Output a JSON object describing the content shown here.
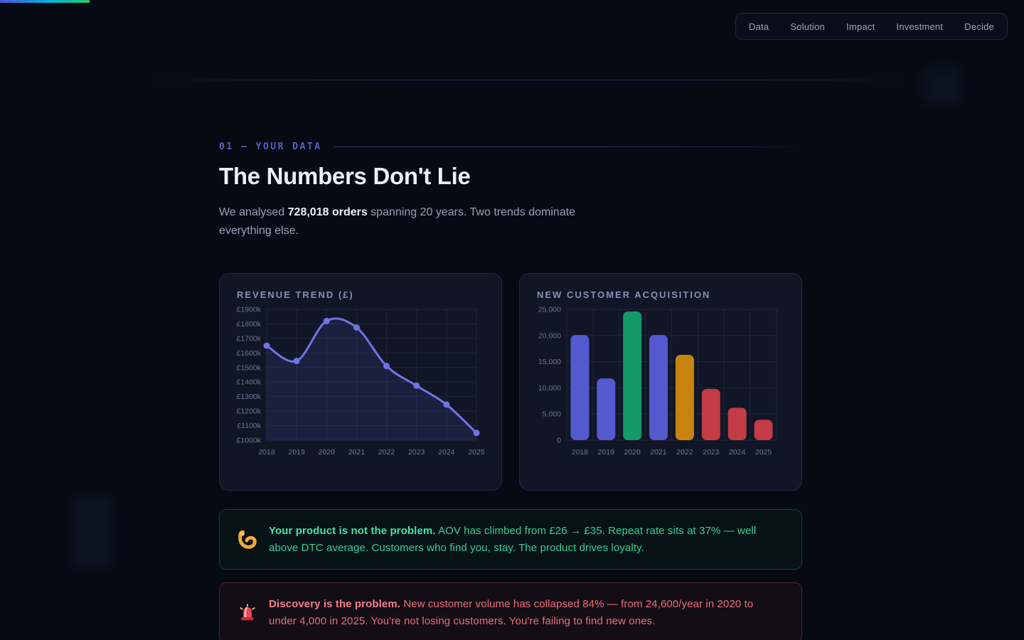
{
  "page": {
    "background": "#060a12",
    "accent_indigo": "#5459ce",
    "accent_green": "#12996a",
    "accent_amber": "#c8830f",
    "accent_red": "#c33b44"
  },
  "progress_bar": {
    "gradient": [
      "#4d53d8",
      "#00b5d8",
      "#2cc46f"
    ]
  },
  "nav": {
    "items": [
      {
        "label": "Data"
      },
      {
        "label": "Solution"
      },
      {
        "label": "Impact"
      },
      {
        "label": "Investment"
      },
      {
        "label": "Decide"
      }
    ]
  },
  "section": {
    "kicker": "01 — YOUR DATA",
    "title": "The Numbers Don't Lie",
    "intro_prefix": "We analysed ",
    "intro_bold": "728,018 orders",
    "intro_suffix": " spanning 20 years. Two trends dominate everything else."
  },
  "chart_data": [
    {
      "type": "line",
      "title": "REVENUE TREND (£)",
      "categories": [
        "2018",
        "2019",
        "2020",
        "2021",
        "2022",
        "2023",
        "2024",
        "2025"
      ],
      "series": [
        {
          "name": "Revenue (£k)",
          "values": [
            1650,
            1545,
            1820,
            1775,
            1510,
            1375,
            1245,
            1050
          ]
        }
      ],
      "ylim": [
        1000,
        1900
      ],
      "y_tick_step": 100,
      "y_tick_labels": [
        "£1000k",
        "£1100k",
        "£1200k",
        "£1300k",
        "£1400k",
        "£1500k",
        "£1600k",
        "£1700k",
        "£1800k",
        "£1900k"
      ],
      "grid": true,
      "legend": "none",
      "line_color": "#6f74e4",
      "fill_color": "rgba(95,103,214,0.13)"
    },
    {
      "type": "bar",
      "title": "NEW CUSTOMER ACQUISITION",
      "categories": [
        "2018",
        "2019",
        "2020",
        "2021",
        "2022",
        "2023",
        "2024",
        "2025"
      ],
      "values": [
        20100,
        11800,
        24600,
        20100,
        16300,
        9800,
        6200,
        3900
      ],
      "bar_colors": [
        "#5459ce",
        "#5459ce",
        "#12996a",
        "#5459ce",
        "#c8830f",
        "#c33b44",
        "#c33b44",
        "#c33b44"
      ],
      "ylim": [
        0,
        25000
      ],
      "y_tick_step": 5000,
      "y_tick_labels": [
        "0",
        "5,000",
        "10,000",
        "15,000",
        "20,000",
        "25,000"
      ],
      "grid": true,
      "legend": "none"
    }
  ],
  "callouts": [
    {
      "tone": "positive",
      "icon": "muscle-icon",
      "lead": "Your product is not the problem.",
      "body": " AOV has climbed from £26 → £35. Repeat rate sits at 37% — well above DTC average. Customers who find you, stay. The product drives loyalty.",
      "text_color": "#36cf97",
      "border_color": "rgba(32,158,116,0.35)"
    },
    {
      "tone": "negative",
      "icon": "siren-icon",
      "lead": "Discovery is the problem.",
      "body": " New customer volume has collapsed 84% — from 24,600/year in 2020 to under 4,000 in 2025. You're not losing customers. You're failing to find new ones.",
      "text_color": "#ee6d79",
      "border_color": "rgba(214,72,84,0.33)"
    }
  ]
}
